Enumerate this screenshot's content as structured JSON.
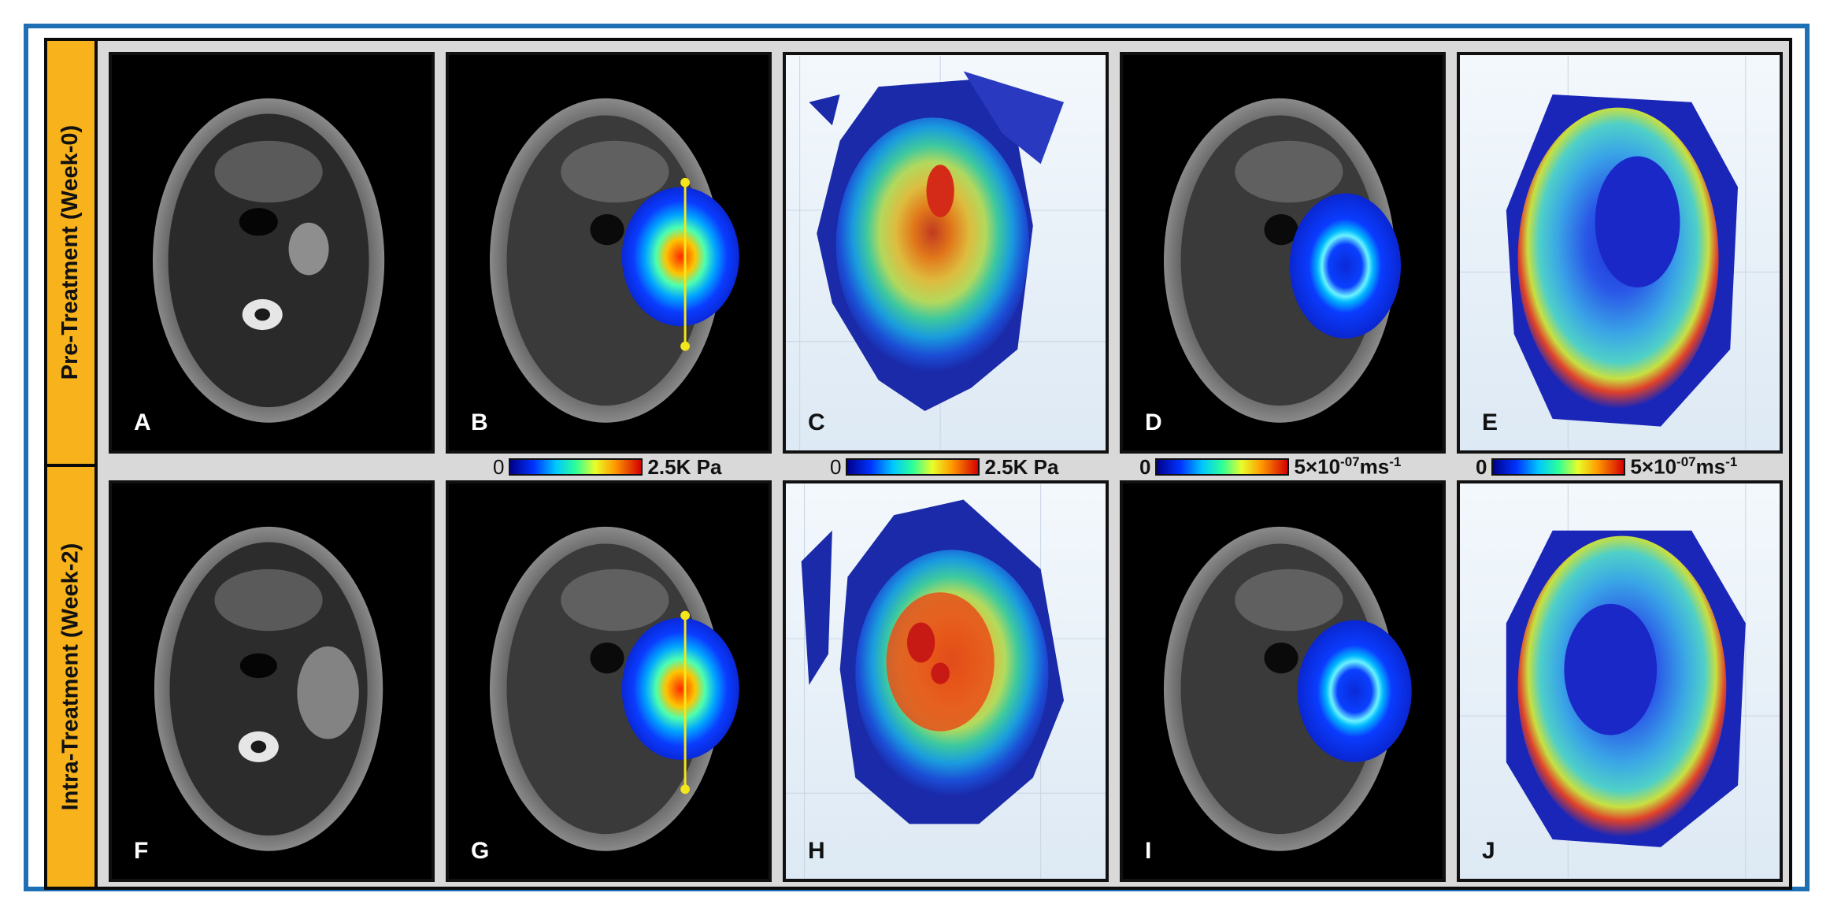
{
  "row_labels": {
    "top": "Pre-Treatment (Week-0)",
    "bottom": "Intra-Treatment (Week-2)"
  },
  "panels": {
    "a": "A",
    "b": "B",
    "c": "C",
    "d": "D",
    "e": "E",
    "f": "F",
    "g": "G",
    "h": "H",
    "i": "I",
    "j": "J"
  },
  "colorbars": {
    "b": {
      "min": "0",
      "max": "2.5K Pa"
    },
    "c": {
      "min": "0",
      "max": "2.5K Pa"
    },
    "d": {
      "min": "0",
      "max_prefix": "5×10",
      "max_exp": "-07",
      "max_unit": "ms",
      "max_unit_exp": "-1"
    },
    "e": {
      "min": "0",
      "max_prefix": "5×10",
      "max_exp": "-07",
      "max_unit": "ms",
      "max_unit_exp": "-1"
    }
  },
  "colors": {
    "frame_blue": "#1f6fb5",
    "label_orange": "#f7b21c",
    "marker_yellow": "#f5e51b"
  }
}
